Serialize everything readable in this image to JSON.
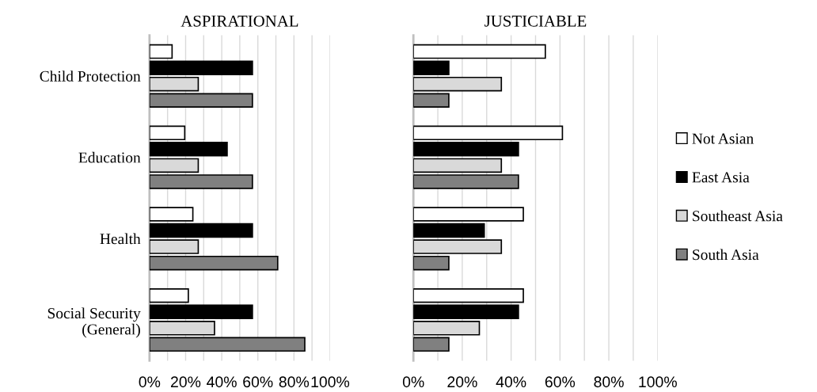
{
  "chart_data": [
    {
      "type": "bar",
      "orientation": "horizontal",
      "title": "ASPIRATIONAL",
      "categories": [
        "Child Protection",
        "Education",
        "Health",
        "Social Security\n(General)"
      ],
      "xlim": [
        0,
        100
      ],
      "xticks": [
        {
          "value": 0,
          "label": "0%"
        },
        {
          "value": 10,
          "label": null
        },
        {
          "value": 20,
          "label": "20%"
        },
        {
          "value": 30,
          "label": null
        },
        {
          "value": 40,
          "label": "40%"
        },
        {
          "value": 50,
          "label": null
        },
        {
          "value": 60,
          "label": "60%"
        },
        {
          "value": 70,
          "label": null
        },
        {
          "value": 80,
          "label": "80%"
        },
        {
          "value": 90,
          "label": null
        },
        {
          "value": 100,
          "label": "100%"
        }
      ],
      "grid": "x",
      "legend": false,
      "series": [
        {
          "color": "#ffffff",
          "values": [
            12.5,
            19.5,
            24,
            21.5
          ]
        },
        {
          "color": "#000000",
          "values": [
            57,
            43,
            57,
            57
          ]
        },
        {
          "color": "#d9d9d9",
          "values": [
            27,
            27,
            27,
            36
          ]
        },
        {
          "color": "#808080",
          "values": [
            57,
            57,
            71,
            86
          ]
        }
      ]
    },
    {
      "type": "bar",
      "orientation": "horizontal",
      "title": "JUSTICIABLE",
      "categories": [
        null,
        null,
        null,
        null
      ],
      "xlim": [
        0,
        100
      ],
      "xticks": [
        {
          "value": 0,
          "label": "0%"
        },
        {
          "value": 10,
          "label": null
        },
        {
          "value": 20,
          "label": "20%"
        },
        {
          "value": 30,
          "label": null
        },
        {
          "value": 40,
          "label": "40%"
        },
        {
          "value": 50,
          "label": null
        },
        {
          "value": 60,
          "label": "60%"
        },
        {
          "value": 70,
          "label": null
        },
        {
          "value": 80,
          "label": "80%"
        },
        {
          "value": 90,
          "label": null
        },
        {
          "value": 100,
          "label": "100%"
        }
      ],
      "grid": "x",
      "legend": "right",
      "series": [
        {
          "name": "Not Asian",
          "color": "#ffffff",
          "values": [
            54,
            61,
            45,
            45
          ]
        },
        {
          "name": "East Asia",
          "color": "#000000",
          "values": [
            14.5,
            43,
            29,
            43
          ]
        },
        {
          "name": "Southeast Asia",
          "color": "#d9d9d9",
          "values": [
            36,
            36,
            36,
            27
          ]
        },
        {
          "name": "South Asia",
          "color": "#808080",
          "values": [
            14.5,
            43,
            14.5,
            14.5
          ]
        }
      ]
    }
  ]
}
